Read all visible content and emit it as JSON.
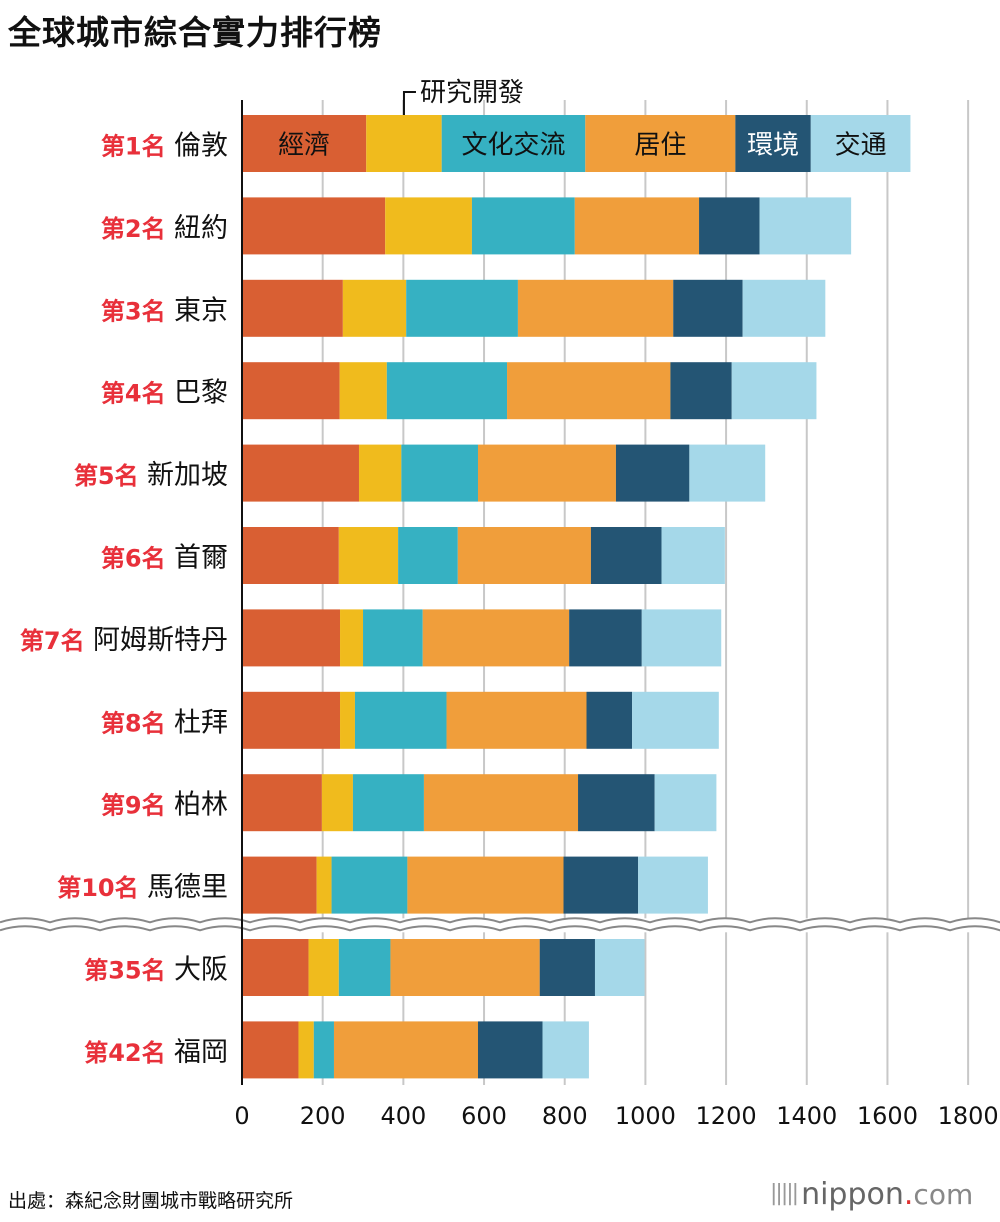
{
  "title": "全球城市綜合實力排行榜",
  "source": "出處：森紀念財團城市戰略研究所",
  "brand": {
    "name": "nippon",
    "dot": ".",
    "suffix": "com"
  },
  "colors": {
    "rank": "#e8303a",
    "economy": "#d95f33",
    "research": "#f0bb1d",
    "culture": "#36b1c2",
    "livability": "#f09e3b",
    "environment": "#245574",
    "accessibility": "#a5d8e9",
    "grid": "#c8c8c8"
  },
  "chart_data": {
    "type": "bar",
    "orientation": "horizontal",
    "stacked": true,
    "title": "全球城市綜合實力排行榜",
    "xlim": [
      0,
      1800
    ],
    "xticks": [
      0,
      200,
      400,
      600,
      800,
      1000,
      1200,
      1400,
      1600,
      1800
    ],
    "grid": true,
    "categories": [
      {
        "rank": "第1名",
        "city": "倫敦"
      },
      {
        "rank": "第2名",
        "city": "紐約"
      },
      {
        "rank": "第3名",
        "city": "東京"
      },
      {
        "rank": "第4名",
        "city": "巴黎"
      },
      {
        "rank": "第5名",
        "city": "新加坡"
      },
      {
        "rank": "第6名",
        "city": "首爾"
      },
      {
        "rank": "第7名",
        "city": "阿姆斯特丹"
      },
      {
        "rank": "第8名",
        "city": "杜拜"
      },
      {
        "rank": "第9名",
        "city": "柏林"
      },
      {
        "rank": "第10名",
        "city": "馬德里"
      },
      {
        "rank": "第35名",
        "city": "大阪"
      },
      {
        "rank": "第42名",
        "city": "福岡"
      }
    ],
    "axis_break_after_index": 9,
    "series": [
      {
        "name": "經濟",
        "color_key": "economy",
        "values": [
          308,
          355,
          250,
          242,
          290,
          240,
          243,
          243,
          198,
          185,
          165,
          140
        ]
      },
      {
        "name": "研究開發",
        "color_key": "research",
        "values": [
          187,
          215,
          157,
          117,
          105,
          147,
          57,
          37,
          77,
          37,
          75,
          38
        ]
      },
      {
        "name": "文化交流",
        "color_key": "culture",
        "values": [
          356,
          255,
          277,
          298,
          190,
          148,
          148,
          227,
          176,
          188,
          128,
          50
        ]
      },
      {
        "name": "居住",
        "color_key": "livability",
        "values": [
          372,
          308,
          385,
          405,
          342,
          330,
          363,
          347,
          382,
          387,
          370,
          357
        ]
      },
      {
        "name": "環境",
        "color_key": "environment",
        "values": [
          187,
          150,
          172,
          152,
          182,
          175,
          180,
          113,
          190,
          185,
          137,
          160
        ]
      },
      {
        "name": "交通",
        "color_key": "accessibility",
        "values": [
          247,
          227,
          205,
          210,
          188,
          157,
          197,
          215,
          153,
          173,
          123,
          115
        ]
      }
    ],
    "legend": {
      "inline_labels": [
        "經濟",
        "文化交流",
        "居住",
        "環境",
        "交通"
      ],
      "callout": "研究開發"
    }
  }
}
